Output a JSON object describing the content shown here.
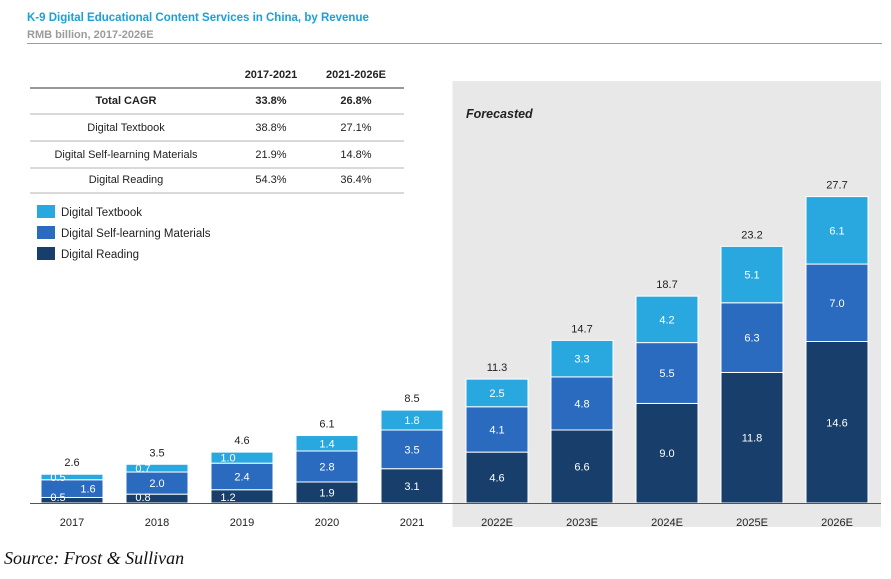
{
  "header": {
    "title": "K-9 Digital Educational Content Services in China, by Revenue",
    "subtitle": "RMB billion, 2017-2026E"
  },
  "cagr_table": {
    "columns": [
      "2017-2021",
      "2021-2026E"
    ],
    "rows": [
      {
        "label": "Total CAGR",
        "values": [
          "33.8%",
          "26.8%"
        ],
        "bold": true
      },
      {
        "label": "Digital Textbook",
        "values": [
          "38.8%",
          "27.1%"
        ]
      },
      {
        "label": "Digital Self-learning Materials",
        "values": [
          "21.9%",
          "14.8%"
        ]
      },
      {
        "label": "Digital Reading",
        "values": [
          "54.3%",
          "36.4%"
        ]
      }
    ]
  },
  "forecast_label": "Forecasted",
  "source": "Source: Frost & Sullivan",
  "colors": {
    "Digital Textbook": "#29a8e0",
    "Digital Self-learning Materials": "#2a6bbf",
    "Digital Reading": "#183f6b",
    "forecast_bg": "#e8e8e8"
  },
  "chart_data": {
    "type": "bar",
    "stacked": true,
    "categories": [
      "2017",
      "2018",
      "2019",
      "2020",
      "2021",
      "2022E",
      "2023E",
      "2024E",
      "2025E",
      "2026E"
    ],
    "series": [
      {
        "name": "Digital Reading",
        "values": [
          0.5,
          0.8,
          1.2,
          1.9,
          3.1,
          4.6,
          6.6,
          9.0,
          11.8,
          14.6
        ]
      },
      {
        "name": "Digital Self-learning Materials",
        "values": [
          1.6,
          2.0,
          2.4,
          2.8,
          3.5,
          4.1,
          4.8,
          5.5,
          6.3,
          7.0
        ]
      },
      {
        "name": "Digital Textbook",
        "values": [
          0.5,
          0.7,
          1.0,
          1.4,
          1.8,
          2.5,
          3.3,
          4.2,
          5.1,
          6.1
        ]
      }
    ],
    "totals": [
      "2.6",
      "3.5",
      "4.6",
      "6.1",
      "8.5",
      "11.3",
      "14.7",
      "18.7",
      "23.2",
      "27.7"
    ],
    "value_labels": [
      [
        "0.5",
        "0.8",
        "1.2",
        "1.9",
        "3.1",
        "4.6",
        "6.6",
        "9.0",
        "11.8",
        "14.6"
      ],
      [
        "1.6",
        "2.0",
        "2.4",
        "2.8",
        "3.5",
        "4.1",
        "4.8",
        "5.5",
        "6.3",
        "7.0"
      ],
      [
        "0.5",
        "0.7",
        "1.0",
        "1.4",
        "1.8",
        "2.5",
        "3.3",
        "4.2",
        "5.1",
        "6.1"
      ]
    ],
    "legend": [
      "Digital Textbook",
      "Digital Self-learning Materials",
      "Digital Reading"
    ],
    "legend_position": "top-left",
    "forecast_from": "2022E",
    "ylim": [
      0,
      27.7
    ],
    "grid": false
  }
}
